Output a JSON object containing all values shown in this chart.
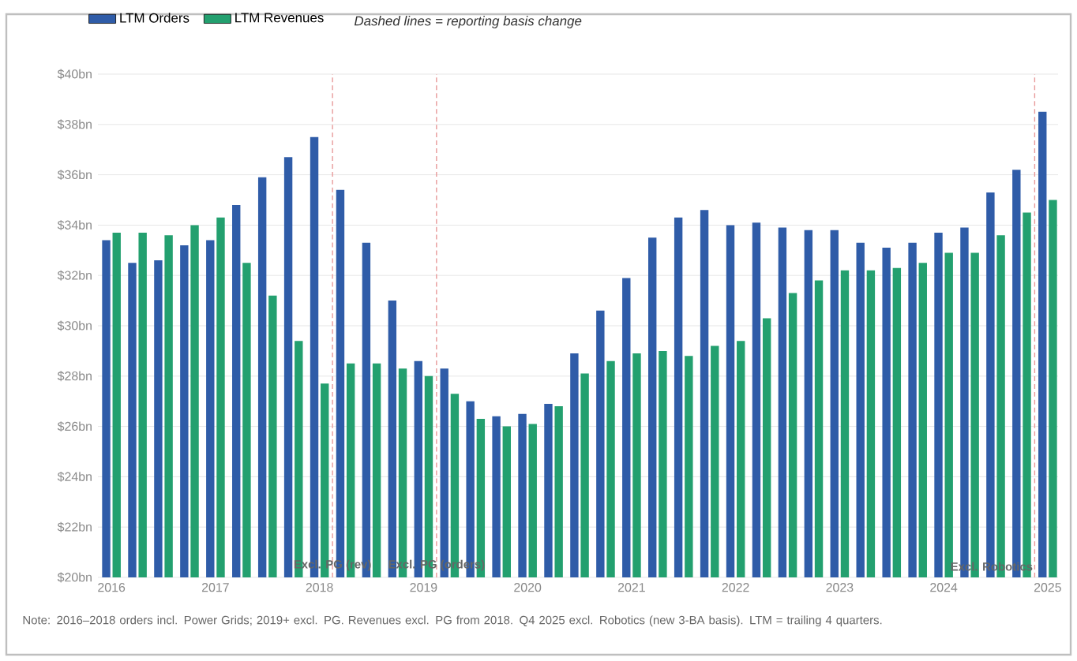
{
  "chart_data": {
    "type": "bar",
    "x": [
      2016,
      2016.25,
      2016.5,
      2016.75,
      2017,
      2017.25,
      2017.5,
      2017.75,
      2018,
      2018.25,
      2018.5,
      2018.75,
      2019,
      2019.25,
      2019.5,
      2019.75,
      2020,
      2020.25,
      2020.5,
      2020.75,
      2021,
      2021.25,
      2021.5,
      2021.75,
      2022,
      2022.25,
      2022.5,
      2022.75,
      2023,
      2023.25,
      2023.5,
      2023.75,
      2024,
      2024.25,
      2024.5,
      2024.75,
      2025
    ],
    "series": [
      {
        "name": "LTM Orders",
        "color": "#2f5ca8",
        "values": [
          33.4,
          32.5,
          32.6,
          33.2,
          33.4,
          34.8,
          35.9,
          36.7,
          37.5,
          35.4,
          33.3,
          31.0,
          28.6,
          28.3,
          27.0,
          26.4,
          26.5,
          26.9,
          28.9,
          30.6,
          31.9,
          33.5,
          34.3,
          34.6,
          34.0,
          34.1,
          33.9,
          33.8,
          33.8,
          33.3,
          33.1,
          33.3,
          33.7,
          33.9,
          35.3,
          36.2,
          38.5
        ]
      },
      {
        "name": "LTM Revenues",
        "color": "#23a06f",
        "values": [
          33.7,
          33.7,
          33.6,
          34.0,
          34.3,
          32.5,
          31.2,
          29.4,
          27.7,
          28.5,
          28.5,
          28.3,
          28.0,
          27.3,
          26.3,
          26.0,
          26.1,
          26.8,
          28.1,
          28.6,
          28.9,
          29.0,
          28.8,
          29.2,
          29.4,
          30.3,
          31.3,
          31.8,
          32.2,
          32.2,
          32.3,
          32.5,
          32.9,
          32.9,
          33.6,
          34.5,
          35.0
        ]
      }
    ],
    "xlim": [
      2015.87,
      2025.1
    ],
    "xticks": [
      2016,
      2017,
      2018,
      2019,
      2020,
      2021,
      2022,
      2023,
      2024,
      2025
    ],
    "ylim": [
      20,
      40
    ],
    "yticks": [
      {
        "value": 20,
        "label": "$20bn"
      },
      {
        "value": 22,
        "label": "$22bn"
      },
      {
        "value": 24,
        "label": "$24bn"
      },
      {
        "value": 26,
        "label": "$26bn"
      },
      {
        "value": 28,
        "label": "$28bn"
      },
      {
        "value": 30,
        "label": "$30bn"
      },
      {
        "value": 32,
        "label": "$32bn"
      },
      {
        "value": 34,
        "label": "$34bn"
      },
      {
        "value": 36,
        "label": "$36bn"
      },
      {
        "value": 38,
        "label": "$38bn"
      },
      {
        "value": 40,
        "label": "$40bn"
      }
    ],
    "grid": "y",
    "legend": "top left",
    "ref_lines": [
      {
        "axis": "x",
        "value": 2018.125,
        "label": "Excl. PG (rev)",
        "color": "#e89a9a",
        "line_style": "dashed"
      },
      {
        "axis": "x",
        "value": 2019.125,
        "label": "Excl. PG (orders)",
        "color": "#e89a9a",
        "line_style": "dashed"
      },
      {
        "axis": "x",
        "value": 2024.875,
        "label": "Excl. Robotics",
        "color": "#e89a9a",
        "line_style": "dashed"
      }
    ],
    "annotations": [
      "Dashed lines = reporting basis change",
      "Note: 2016–2018 orders incl. Power Grids; 2019+ excl. PG. Revenues excl. PG from 2018. Q4 2025 excl. Robotics (new 3-BA basis). LTM = trailing 4 quarters."
    ]
  }
}
